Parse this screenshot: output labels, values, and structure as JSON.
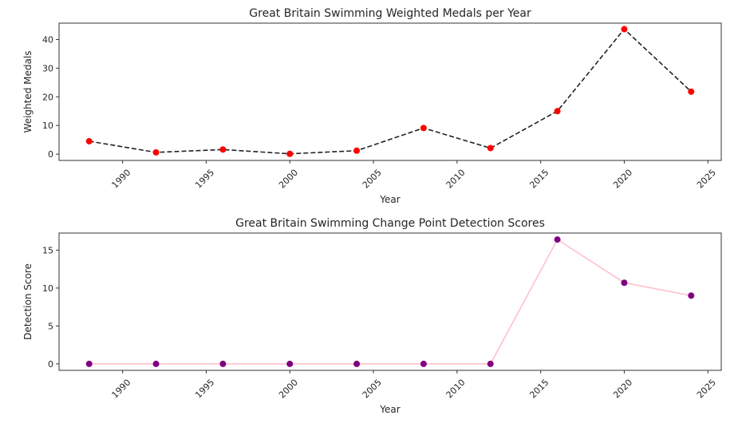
{
  "chart_data": [
    {
      "type": "line",
      "title": "Great Britain Swimming Weighted Medals per Year",
      "xlabel": "Year",
      "ylabel": "Weighted Medals",
      "xlim": [
        1986.2,
        2025.8
      ],
      "ylim": [
        -2.2,
        45.7
      ],
      "xticks": [
        1990,
        1995,
        2000,
        2005,
        2010,
        2015,
        2020,
        2025
      ],
      "yticks": [
        0,
        10,
        20,
        30,
        40
      ],
      "line_style": "dashed",
      "line_color": "#222222",
      "marker_color": "#ff0000",
      "grid": false,
      "x": [
        1988,
        1992,
        1996,
        2000,
        2004,
        2008,
        2012,
        2016,
        2020,
        2024
      ],
      "values": [
        4.5,
        0.6,
        1.6,
        0.1,
        1.2,
        9.1,
        2.1,
        15.0,
        43.6,
        21.8
      ]
    },
    {
      "type": "line",
      "title": "Great Britain Swimming Change Point Detection Scores",
      "xlabel": "Year",
      "ylabel": "Detection Score",
      "xlim": [
        1986.2,
        2025.8
      ],
      "ylim": [
        -0.85,
        17.25
      ],
      "xticks": [
        1990,
        1995,
        2000,
        2005,
        2010,
        2015,
        2020,
        2025
      ],
      "yticks": [
        0,
        5,
        10,
        15
      ],
      "line_style": "solid",
      "line_color": "#ffc0cb",
      "marker_color": "#800080",
      "grid": false,
      "x": [
        1988,
        1992,
        1996,
        2000,
        2004,
        2008,
        2012,
        2016,
        2020,
        2024
      ],
      "values": [
        0,
        0,
        0,
        0,
        0,
        0,
        0,
        16.4,
        10.7,
        9.0
      ]
    }
  ]
}
